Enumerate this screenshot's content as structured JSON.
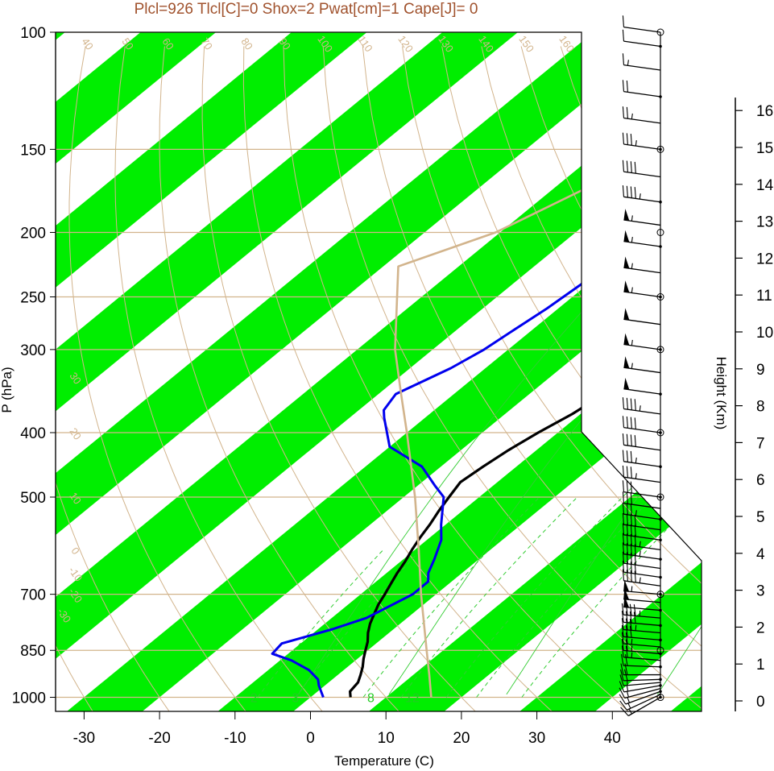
{
  "colors": {
    "band": "#00ee00",
    "isobar": "#d2b48c",
    "dewpoint": "#0000ee",
    "temperature": "#000000",
    "title": "#a0522d",
    "mixing": "#33cc33"
  },
  "chart_data": {
    "type": "line",
    "title": "Plcl=926 Tlcl[C]=0 Shox=2 Pwat[cm]=1 Cape[J]= 0",
    "xlabel": "Temperature (C)",
    "ylabel": "P (hPa)",
    "y2label": "Height (Km)",
    "log_scale_y": true,
    "xlim": [
      -34,
      36
    ],
    "ylim": [
      1050,
      100
    ],
    "x_ticks": [
      "-30",
      "-20",
      "-10",
      "0",
      "10",
      "20",
      "30",
      "40"
    ],
    "pressure_ticks": [
      "100",
      "150",
      "200",
      "250",
      "300",
      "400",
      "500",
      "700",
      "850",
      "1000"
    ],
    "height_ticks": [
      "0",
      "1",
      "2",
      "3",
      "4",
      "5",
      "6",
      "7",
      "8",
      "9",
      "10",
      "11",
      "12",
      "13",
      "14",
      "15",
      "16"
    ],
    "dry_adiabat_labels": [
      "-30",
      "-20",
      "-10",
      "0",
      "10",
      "20",
      "30",
      "40",
      "50",
      "60",
      "70",
      "80",
      "90",
      "100",
      "110",
      "120",
      "130",
      "140",
      "150",
      "160"
    ],
    "isotherm_labels": [
      "-30",
      "-20",
      "-10",
      "0",
      "10",
      "20",
      "30"
    ],
    "mixing_ratio_labels": [
      "12",
      "16",
      "24",
      "32",
      "2",
      "3",
      "8",
      "12"
    ],
    "series": [
      {
        "name": "Temperature",
        "points": [
          [
            1000,
            5.3
          ],
          [
            980,
            4.3
          ],
          [
            950,
            3.9
          ],
          [
            925,
            3.0
          ],
          [
            900,
            2.0
          ],
          [
            875,
            0.8
          ],
          [
            850,
            -0.3
          ],
          [
            825,
            -1.4
          ],
          [
            800,
            -2.8
          ],
          [
            775,
            -4.0
          ],
          [
            750,
            -5.0
          ],
          [
            725,
            -6.0
          ],
          [
            700,
            -6.8
          ],
          [
            675,
            -7.7
          ],
          [
            650,
            -8.6
          ],
          [
            625,
            -9.4
          ],
          [
            600,
            -10.4
          ],
          [
            575,
            -11.3
          ],
          [
            550,
            -12.1
          ],
          [
            525,
            -13.1
          ],
          [
            500,
            -14.0
          ],
          [
            475,
            -14.9
          ],
          [
            450,
            -14.4
          ],
          [
            425,
            -13.7
          ],
          [
            400,
            -12.6
          ],
          [
            375,
            -11.1
          ],
          [
            350,
            -10.1
          ],
          [
            325,
            -9.0
          ],
          [
            300,
            -7.7
          ],
          [
            275,
            -6.6
          ],
          [
            250,
            -4.5
          ],
          [
            225,
            -1.7
          ],
          [
            200,
            1.2
          ],
          [
            175,
            3.7
          ],
          [
            150,
            6.1
          ],
          [
            125,
            9.5
          ],
          [
            110,
            11.8
          ],
          [
            100,
            13.6
          ]
        ]
      },
      {
        "name": "Dewpoint",
        "points": [
          [
            1000,
            1.7
          ],
          [
            960,
            -0.8
          ],
          [
            940,
            -1.9
          ],
          [
            910,
            -4.6
          ],
          [
            880,
            -8.5
          ],
          [
            860,
            -12.1
          ],
          [
            830,
            -12.5
          ],
          [
            790,
            -8.1
          ],
          [
            760,
            -5.4
          ],
          [
            700,
            -3.1
          ],
          [
            670,
            -3.1
          ],
          [
            650,
            -4.5
          ],
          [
            620,
            -5.9
          ],
          [
            580,
            -8.1
          ],
          [
            550,
            -10.6
          ],
          [
            500,
            -14.7
          ],
          [
            480,
            -17.8
          ],
          [
            450,
            -22.5
          ],
          [
            420,
            -30.0
          ],
          [
            380,
            -35.4
          ],
          [
            370,
            -36.7
          ],
          [
            350,
            -37.7
          ],
          [
            320,
            -34.6
          ],
          [
            300,
            -33.2
          ],
          [
            280,
            -32.4
          ],
          [
            260,
            -31.5
          ],
          [
            240,
            -30.9
          ],
          [
            220,
            -30.6
          ],
          [
            200,
            -30.3
          ],
          [
            190,
            -30.3
          ],
          [
            160,
            -33.3
          ],
          [
            140,
            -35.8
          ],
          [
            120,
            -38.5
          ],
          [
            100,
            -40.6
          ]
        ]
      },
      {
        "name": "Parcel",
        "points": [
          [
            1000,
            16.0
          ],
          [
            925,
            12.1
          ],
          [
            850,
            7.8
          ],
          [
            700,
            -2.0
          ],
          [
            600,
            -9.5
          ],
          [
            500,
            -18.5
          ],
          [
            400,
            -30.0
          ],
          [
            350,
            -37.0
          ],
          [
            300,
            -45.0
          ],
          [
            225,
            -58.0
          ],
          [
            200,
            -50.6
          ],
          [
            125,
            -35.7
          ],
          [
            110,
            -32.3
          ]
        ]
      }
    ],
    "wind_barbs": [
      {
        "p": 1000,
        "dir": 230,
        "spd": 15
      },
      {
        "p": 990,
        "dir": 235,
        "spd": 15
      },
      {
        "p": 980,
        "dir": 240,
        "spd": 15
      },
      {
        "p": 970,
        "dir": 245,
        "spd": 15
      },
      {
        "p": 960,
        "dir": 250,
        "spd": 15
      },
      {
        "p": 950,
        "dir": 255,
        "spd": 15
      },
      {
        "p": 940,
        "dir": 258,
        "spd": 20
      },
      {
        "p": 925,
        "dir": 260,
        "spd": 20
      },
      {
        "p": 900,
        "dir": 262,
        "spd": 20
      },
      {
        "p": 880,
        "dir": 265,
        "spd": 25
      },
      {
        "p": 860,
        "dir": 265,
        "spd": 25
      },
      {
        "p": 840,
        "dir": 265,
        "spd": 25
      },
      {
        "p": 820,
        "dir": 265,
        "spd": 30
      },
      {
        "p": 800,
        "dir": 265,
        "spd": 35
      },
      {
        "p": 780,
        "dir": 265,
        "spd": 40
      },
      {
        "p": 760,
        "dir": 265,
        "spd": 45
      },
      {
        "p": 740,
        "dir": 265,
        "spd": 50
      },
      {
        "p": 720,
        "dir": 265,
        "spd": 50
      },
      {
        "p": 700,
        "dir": 265,
        "spd": 55
      },
      {
        "p": 680,
        "dir": 268,
        "spd": 45
      },
      {
        "p": 660,
        "dir": 268,
        "spd": 40
      },
      {
        "p": 640,
        "dir": 268,
        "spd": 40
      },
      {
        "p": 620,
        "dir": 268,
        "spd": 45
      },
      {
        "p": 600,
        "dir": 268,
        "spd": 45
      },
      {
        "p": 580,
        "dir": 268,
        "spd": 40
      },
      {
        "p": 560,
        "dir": 268,
        "spd": 40
      },
      {
        "p": 540,
        "dir": 268,
        "spd": 35
      },
      {
        "p": 520,
        "dir": 268,
        "spd": 30
      },
      {
        "p": 500,
        "dir": 268,
        "spd": 30
      },
      {
        "p": 475,
        "dir": 268,
        "spd": 35
      },
      {
        "p": 450,
        "dir": 268,
        "spd": 35
      },
      {
        "p": 425,
        "dir": 268,
        "spd": 40
      },
      {
        "p": 400,
        "dir": 268,
        "spd": 40
      },
      {
        "p": 375,
        "dir": 268,
        "spd": 45
      },
      {
        "p": 350,
        "dir": 268,
        "spd": 50
      },
      {
        "p": 325,
        "dir": 268,
        "spd": 55
      },
      {
        "p": 300,
        "dir": 268,
        "spd": 55
      },
      {
        "p": 275,
        "dir": 268,
        "spd": 50
      },
      {
        "p": 250,
        "dir": 268,
        "spd": 55
      },
      {
        "p": 230,
        "dir": 268,
        "spd": 55
      },
      {
        "p": 210,
        "dir": 268,
        "spd": 55
      },
      {
        "p": 195,
        "dir": 268,
        "spd": 55
      },
      {
        "p": 180,
        "dir": 268,
        "spd": 45
      },
      {
        "p": 165,
        "dir": 268,
        "spd": 40
      },
      {
        "p": 150,
        "dir": 268,
        "spd": 35
      },
      {
        "p": 137,
        "dir": 268,
        "spd": 25
      },
      {
        "p": 125,
        "dir": 268,
        "spd": 20
      },
      {
        "p": 114,
        "dir": 268,
        "spd": 15
      },
      {
        "p": 105,
        "dir": 268,
        "spd": 10
      },
      {
        "p": 100,
        "dir": 268,
        "spd": 10
      }
    ]
  }
}
